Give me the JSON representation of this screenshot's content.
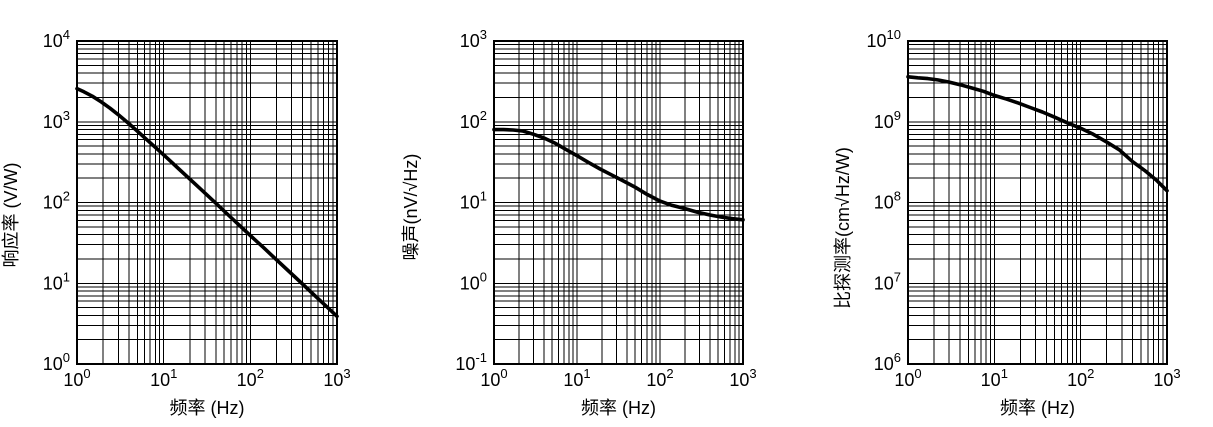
{
  "page": {
    "background_color": "#ffffff",
    "ink_color": "#000000",
    "title": ""
  },
  "chart_data": [
    {
      "type": "line",
      "panel": "responsivity-vs-frequency",
      "title": "",
      "xlabel": "频率 (Hz)",
      "ylabel": "响应率 (V/W)",
      "xscale": "log",
      "yscale": "log",
      "xlim": [
        1,
        1000
      ],
      "ylim": [
        1,
        10000
      ],
      "tick_base": "10",
      "x_tick_exponents": [
        0,
        1,
        2,
        3
      ],
      "y_tick_exponents": [
        0,
        1,
        2,
        3,
        4
      ],
      "grid": "log major+minor, both axes",
      "legend": null,
      "series": [
        {
          "name": "responsivity",
          "color": "#000000",
          "line_width": 3.6,
          "x": [
            1,
            1.2,
            1.5,
            1.9,
            2.4,
            3,
            4,
            5,
            6.5,
            8.5,
            11,
            15,
            20,
            28,
            40,
            55,
            75,
            100,
            140,
            200,
            280,
            400,
            550,
            750,
            1000
          ],
          "y": [
            2570,
            2350,
            2070,
            1760,
            1470,
            1220,
            940,
            760,
            590,
            456,
            354,
            260,
            195,
            140,
            98,
            71,
            52,
            39,
            28,
            19.6,
            14,
            9.8,
            7.1,
            5.2,
            3.9
          ]
        }
      ]
    },
    {
      "type": "line",
      "panel": "noise-vs-frequency",
      "title": "",
      "xlabel": "频率 (Hz)",
      "ylabel": "噪声(nV/√Hz)",
      "xscale": "log",
      "yscale": "log",
      "xlim": [
        1,
        1000
      ],
      "ylim": [
        0.1,
        1000
      ],
      "tick_base": "10",
      "x_tick_exponents": [
        0,
        1,
        2,
        3
      ],
      "y_tick_exponents": [
        -1,
        0,
        1,
        2,
        3
      ],
      "grid": "log major+minor, both axes",
      "legend": null,
      "series": [
        {
          "name": "noise",
          "color": "#000000",
          "line_width": 3.6,
          "x": [
            1,
            1.3,
            1.7,
            2.2,
            3,
            4,
            5.5,
            7.5,
            10,
            14,
            19,
            26,
            36,
            50,
            70,
            100,
            140,
            200,
            280,
            400,
            550,
            750,
            1000
          ],
          "y": [
            80,
            80,
            79,
            77,
            70,
            63,
            54,
            45,
            38,
            31,
            26,
            22,
            18.5,
            15.5,
            12.6,
            10.4,
            9.2,
            8.4,
            7.6,
            7.0,
            6.6,
            6.3,
            6.1
          ]
        }
      ]
    },
    {
      "type": "line",
      "panel": "detectivity-vs-frequency",
      "title": "",
      "xlabel": "频率 (Hz)",
      "ylabel": "比探测率(cm√Hz/W)",
      "xscale": "log",
      "yscale": "log",
      "xlim": [
        1,
        1000
      ],
      "ylim": [
        1000000,
        10000000000
      ],
      "tick_base": "10",
      "x_tick_exponents": [
        0,
        1,
        2,
        3
      ],
      "y_tick_exponents": [
        6,
        7,
        8,
        9,
        10
      ],
      "grid": "log major+minor, both axes",
      "legend": null,
      "series": [
        {
          "name": "specific detectivity",
          "color": "#000000",
          "line_width": 3.6,
          "x": [
            1,
            1.3,
            1.7,
            2.2,
            3,
            4,
            5.5,
            7.5,
            10,
            14,
            19,
            26,
            36,
            50,
            70,
            100,
            140,
            200,
            280,
            400,
            550,
            750,
            1000
          ],
          "y": [
            3600000000.0,
            3500000000.0,
            3420000000.0,
            3300000000.0,
            3100000000.0,
            2880000000.0,
            2620000000.0,
            2380000000.0,
            2120000000.0,
            1900000000.0,
            1700000000.0,
            1500000000.0,
            1320000000.0,
            1140000000.0,
            970000000.0,
            830000000.0,
            700000000.0,
            560000000.0,
            450000000.0,
            320000000.0,
            250000000.0,
            190000000.0,
            140000000.0
          ]
        }
      ]
    }
  ]
}
